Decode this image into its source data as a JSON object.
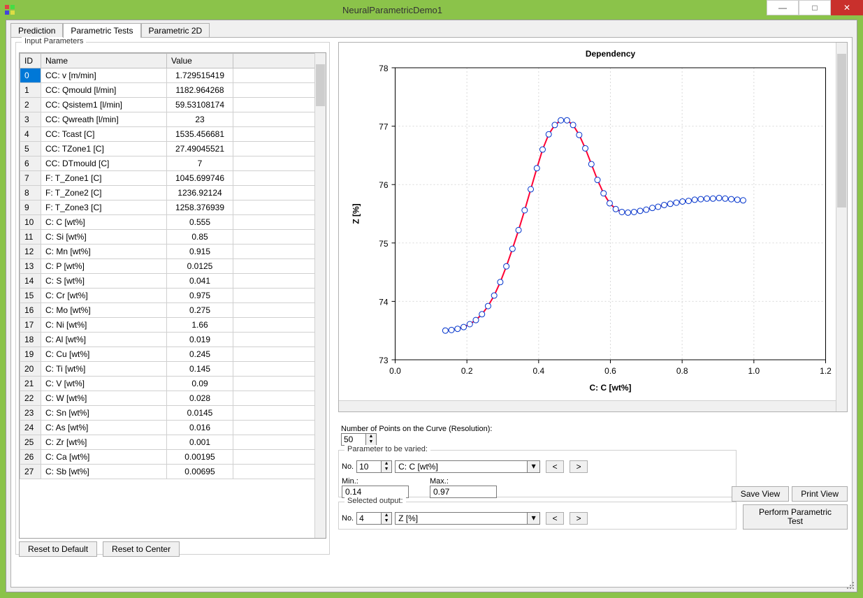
{
  "window": {
    "title": "NeuralParametricDemo1",
    "btn_min": "—",
    "btn_max": "□",
    "btn_close": "✕"
  },
  "tabs": [
    {
      "label": "Prediction"
    },
    {
      "label": "Parametric Tests"
    },
    {
      "label": "Parametric 2D"
    }
  ],
  "active_tab": 1,
  "input_params": {
    "legend": "Input Parameters",
    "columns": [
      "ID",
      "Name",
      "Value"
    ],
    "rows": [
      {
        "id": "0",
        "name": "CC: v [m/min]",
        "value": "1.729515419",
        "selected": true
      },
      {
        "id": "1",
        "name": "CC: Qmould [l/min]",
        "value": "1182.964268"
      },
      {
        "id": "2",
        "name": "CC: Qsistem1 [l/min]",
        "value": "59.53108174"
      },
      {
        "id": "3",
        "name": "CC: Qwreath [l/min]",
        "value": "23"
      },
      {
        "id": "4",
        "name": "CC: Tcast [C]",
        "value": "1535.456681"
      },
      {
        "id": "5",
        "name": "CC: TZone1 [C]",
        "value": "27.49045521"
      },
      {
        "id": "6",
        "name": "CC: DTmould [C]",
        "value": "7"
      },
      {
        "id": "7",
        "name": "F: T_Zone1 [C]",
        "value": "1045.699746"
      },
      {
        "id": "8",
        "name": "F: T_Zone2 [C]",
        "value": "1236.92124"
      },
      {
        "id": "9",
        "name": "F: T_Zone3 [C]",
        "value": "1258.376939"
      },
      {
        "id": "10",
        "name": "C: C [wt%]",
        "value": "0.555"
      },
      {
        "id": "11",
        "name": "C: Si [wt%]",
        "value": "0.85"
      },
      {
        "id": "12",
        "name": "C: Mn [wt%]",
        "value": "0.915"
      },
      {
        "id": "13",
        "name": "C: P [wt%]",
        "value": "0.0125"
      },
      {
        "id": "14",
        "name": "C: S [wt%]",
        "value": "0.041"
      },
      {
        "id": "15",
        "name": "C: Cr [wt%]",
        "value": "0.975"
      },
      {
        "id": "16",
        "name": "C: Mo [wt%]",
        "value": "0.275"
      },
      {
        "id": "17",
        "name": "C: Ni [wt%]",
        "value": "1.66"
      },
      {
        "id": "18",
        "name": "C: Al [wt%]",
        "value": "0.019"
      },
      {
        "id": "19",
        "name": "C: Cu [wt%]",
        "value": "0.245"
      },
      {
        "id": "20",
        "name": "C: Ti [wt%]",
        "value": "0.145"
      },
      {
        "id": "21",
        "name": "C: V [wt%]",
        "value": "0.09"
      },
      {
        "id": "22",
        "name": "C: W [wt%]",
        "value": "0.028"
      },
      {
        "id": "23",
        "name": "C: Sn [wt%]",
        "value": "0.0145"
      },
      {
        "id": "24",
        "name": "C: As [wt%]",
        "value": "0.016"
      },
      {
        "id": "25",
        "name": "C: Zr [wt%]",
        "value": "0.001"
      },
      {
        "id": "26",
        "name": "C: Ca [wt%]",
        "value": "0.00195"
      },
      {
        "id": "27",
        "name": "C: Sb [wt%]",
        "value": "0.00695"
      }
    ],
    "reset_default": "Reset to Default",
    "reset_center": "Reset to Center"
  },
  "chart": {
    "title": "Dependency",
    "xlabel": "C: C [wt%]",
    "ylabel": "Z [%]",
    "title_fontsize": 16,
    "label_fontsize": 14,
    "tick_fontsize": 13,
    "xlim": [
      0.0,
      1.2
    ],
    "ylim": [
      73,
      78
    ],
    "xticks": [
      0.0,
      0.2,
      0.4,
      0.6,
      0.8,
      1.0,
      1.2
    ],
    "yticks": [
      73,
      74,
      75,
      76,
      77,
      78
    ],
    "grid_color": "#d9d9d9",
    "axis_color": "#000000",
    "bg_color": "#ffffff",
    "line_color": "#ff0033",
    "line_width": 2,
    "marker_edge_color": "#0033cc",
    "marker_fill_color": "#ffffff",
    "marker_size": 4,
    "data": [
      {
        "x": 0.14,
        "y": 73.5
      },
      {
        "x": 0.157,
        "y": 73.51
      },
      {
        "x": 0.174,
        "y": 73.53
      },
      {
        "x": 0.191,
        "y": 73.56
      },
      {
        "x": 0.208,
        "y": 73.61
      },
      {
        "x": 0.225,
        "y": 73.68
      },
      {
        "x": 0.242,
        "y": 73.78
      },
      {
        "x": 0.259,
        "y": 73.92
      },
      {
        "x": 0.276,
        "y": 74.1
      },
      {
        "x": 0.293,
        "y": 74.33
      },
      {
        "x": 0.31,
        "y": 74.6
      },
      {
        "x": 0.327,
        "y": 74.9
      },
      {
        "x": 0.344,
        "y": 75.22
      },
      {
        "x": 0.361,
        "y": 75.56
      },
      {
        "x": 0.378,
        "y": 75.92
      },
      {
        "x": 0.395,
        "y": 76.28
      },
      {
        "x": 0.411,
        "y": 76.6
      },
      {
        "x": 0.428,
        "y": 76.86
      },
      {
        "x": 0.445,
        "y": 77.02
      },
      {
        "x": 0.462,
        "y": 77.1
      },
      {
        "x": 0.479,
        "y": 77.1
      },
      {
        "x": 0.496,
        "y": 77.02
      },
      {
        "x": 0.513,
        "y": 76.85
      },
      {
        "x": 0.53,
        "y": 76.62
      },
      {
        "x": 0.547,
        "y": 76.35
      },
      {
        "x": 0.564,
        "y": 76.08
      },
      {
        "x": 0.581,
        "y": 75.85
      },
      {
        "x": 0.598,
        "y": 75.68
      },
      {
        "x": 0.615,
        "y": 75.58
      },
      {
        "x": 0.632,
        "y": 75.53
      },
      {
        "x": 0.649,
        "y": 75.52
      },
      {
        "x": 0.666,
        "y": 75.53
      },
      {
        "x": 0.683,
        "y": 75.55
      },
      {
        "x": 0.7,
        "y": 75.57
      },
      {
        "x": 0.717,
        "y": 75.6
      },
      {
        "x": 0.733,
        "y": 75.62
      },
      {
        "x": 0.75,
        "y": 75.65
      },
      {
        "x": 0.767,
        "y": 75.67
      },
      {
        "x": 0.784,
        "y": 75.69
      },
      {
        "x": 0.801,
        "y": 75.71
      },
      {
        "x": 0.818,
        "y": 75.72
      },
      {
        "x": 0.835,
        "y": 75.74
      },
      {
        "x": 0.852,
        "y": 75.75
      },
      {
        "x": 0.869,
        "y": 75.76
      },
      {
        "x": 0.886,
        "y": 75.76
      },
      {
        "x": 0.903,
        "y": 75.77
      },
      {
        "x": 0.92,
        "y": 75.76
      },
      {
        "x": 0.937,
        "y": 75.75
      },
      {
        "x": 0.954,
        "y": 75.74
      },
      {
        "x": 0.97,
        "y": 75.73
      }
    ]
  },
  "resolution": {
    "label": "Number of Points on the Curve (Resolution):",
    "value": "50"
  },
  "param_group": {
    "legend": "Parameter to be varied:",
    "no_label": "No.",
    "no_value": "10",
    "combo_value": "C: C [wt%]",
    "min_label": "Min.:",
    "min_value": "0.14",
    "max_label": "Max.:",
    "max_value": "0.97",
    "prev": "<",
    "next": ">"
  },
  "output_group": {
    "legend": "Selected output:",
    "no_label": "No.",
    "no_value": "4",
    "combo_value": "Z [%]",
    "prev": "<",
    "next": ">"
  },
  "buttons": {
    "save_view": "Save View",
    "print_view": "Print View",
    "perform": "Perform Parametric Test"
  }
}
